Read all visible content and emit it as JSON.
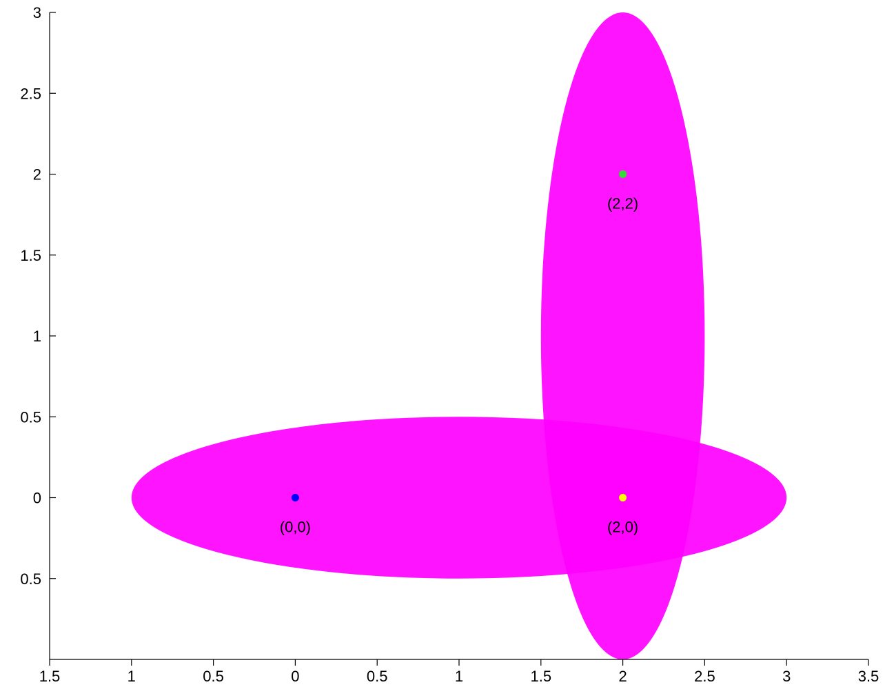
{
  "chart_data": {
    "type": "scatter",
    "title": "",
    "xlabel": "",
    "ylabel": "",
    "xlim": [
      -1.5,
      3.5
    ],
    "ylim": [
      -1,
      3
    ],
    "grid": false,
    "x_tick_values": [
      -1.5,
      -1,
      -0.5,
      0,
      0.5,
      1,
      1.5,
      2,
      2.5,
      3,
      3.5
    ],
    "x_tick_labels": [
      "1.5",
      "1",
      "0.5",
      "0",
      "0.5",
      "1",
      "1.5",
      "2",
      "2.5",
      "3",
      "3.5"
    ],
    "y_tick_values": [
      -0.5,
      0,
      0.5,
      1,
      1.5,
      2,
      2.5,
      3
    ],
    "y_tick_labels": [
      "0.5",
      "0",
      "0.5",
      "1",
      "1.5",
      "2",
      "2.5",
      "3"
    ],
    "ellipses": [
      {
        "cx": 1,
        "cy": 0,
        "rx": 2,
        "ry": 0.5,
        "color": "#ff00ff",
        "opacity": 0.92
      },
      {
        "cx": 2,
        "cy": 1,
        "rx": 0.5,
        "ry": 2,
        "color": "#ff00ff",
        "opacity": 0.92
      }
    ],
    "points": [
      {
        "x": 0,
        "y": 0,
        "label": "(0,0)",
        "color": "#0000ff"
      },
      {
        "x": 2,
        "y": 2,
        "label": "(2,2)",
        "color": "#33dd33"
      },
      {
        "x": 2,
        "y": 0,
        "label": "(2,0)",
        "color": "#ffff00"
      }
    ]
  }
}
